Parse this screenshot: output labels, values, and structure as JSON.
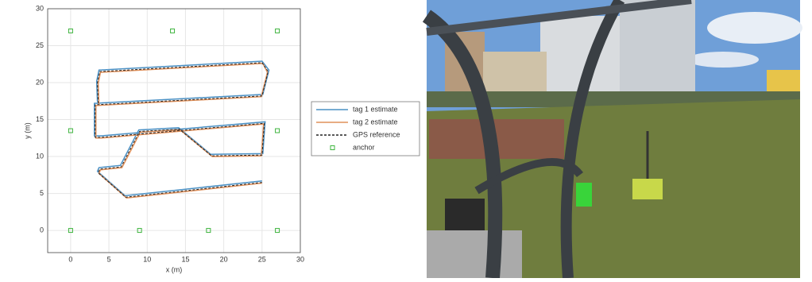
{
  "chart_data": {
    "type": "line",
    "xlabel": "x (m)",
    "ylabel": "y (m)",
    "xlim": [
      -3,
      30
    ],
    "ylim": [
      -3,
      30
    ],
    "xticks": [
      0,
      5,
      10,
      15,
      20,
      25,
      30
    ],
    "yticks": [
      0,
      5,
      10,
      15,
      20,
      25,
      30
    ],
    "legend": "outside-right",
    "series": [
      {
        "name": "tag 1 estimate",
        "color": "#4a90c4",
        "style": "solid",
        "x": [
          25,
          7.1,
          3.5,
          3.7,
          6.5,
          8.9,
          14.1,
          18.3,
          25.1,
          25.4,
          4,
          3.1,
          3.1,
          25.1,
          25.9,
          25,
          3.7,
          3.4,
          3.5
        ],
        "values": [
          6.7,
          4.7,
          8,
          8.5,
          8.8,
          13.6,
          13.9,
          10.3,
          10.4,
          14.7,
          12.8,
          12.8,
          17.2,
          18.4,
          21.7,
          22.9,
          21.7,
          20.2,
          17.4
        ]
      },
      {
        "name": "tag 2 estimate",
        "color": "#e0905a",
        "style": "solid",
        "x": [
          25,
          7.3,
          3.7,
          3.9,
          6.7,
          9.1,
          14.3,
          18.5,
          24.9,
          25.2,
          4.1,
          3.3,
          3.3,
          24.9,
          25.7,
          25.1,
          3.9,
          3.6,
          3.7
        ],
        "values": [
          6.4,
          4.4,
          7.7,
          8.2,
          8.5,
          13.3,
          13.6,
          10,
          10.1,
          14.4,
          12.5,
          12.5,
          16.9,
          18.1,
          21.4,
          22.6,
          21.4,
          19.9,
          17.1
        ]
      },
      {
        "name": "GPS reference",
        "color": "#222222",
        "style": "dashed",
        "x": [
          25,
          7.2,
          3.6,
          3.8,
          6.6,
          9,
          14.2,
          18.4,
          25,
          25.3,
          4,
          3.2,
          3.2,
          25,
          25.8,
          25,
          3.8,
          3.5,
          3.6
        ],
        "values": [
          6.5,
          4.5,
          7.8,
          8.3,
          8.6,
          13.4,
          13.7,
          10.1,
          10.2,
          14.5,
          12.6,
          12.6,
          17,
          18.2,
          21.5,
          22.7,
          21.5,
          20,
          17.2
        ]
      },
      {
        "name": "anchor",
        "color": "#3cb43c",
        "style": "marker",
        "x": [
          0,
          13.3,
          27,
          0,
          27,
          0,
          9,
          18,
          27
        ],
        "values": [
          27,
          27,
          27,
          13.5,
          13.5,
          0,
          0,
          0,
          0
        ]
      }
    ]
  }
}
